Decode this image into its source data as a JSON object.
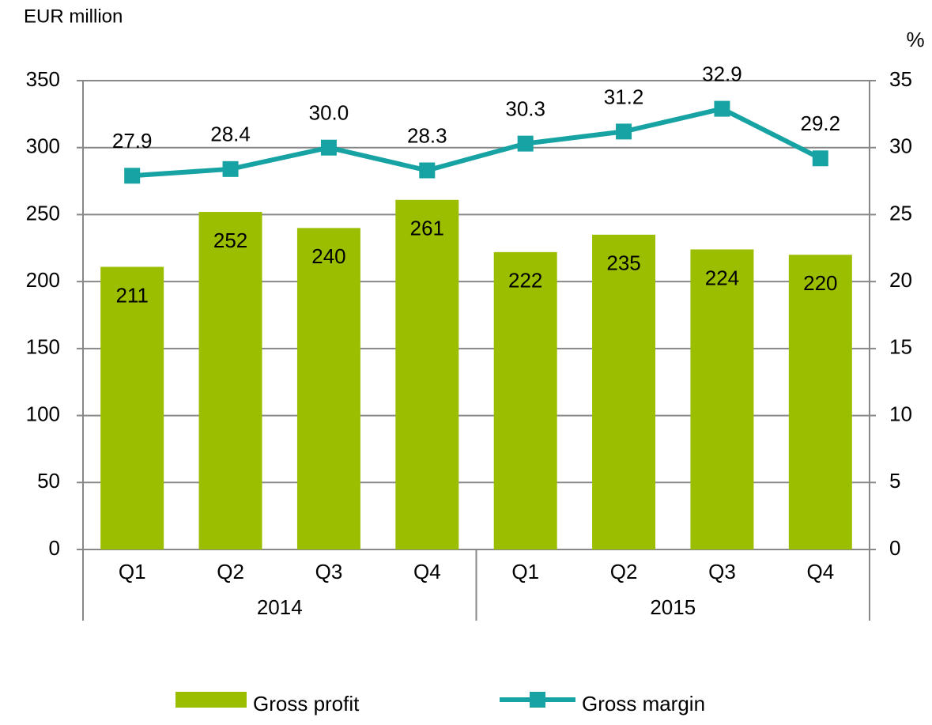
{
  "chart_data": {
    "type": "bar_line",
    "y_axis_label": "EUR million",
    "y2_axis_label": "%",
    "categories": [
      "Q1",
      "Q2",
      "Q3",
      "Q4",
      "Q1",
      "Q2",
      "Q3",
      "Q4"
    ],
    "category_groups": [
      "2014",
      "2015"
    ],
    "series": [
      {
        "name": "Gross profit",
        "type": "bar",
        "color": "#9bbf00",
        "values": [
          211,
          252,
          240,
          261,
          222,
          235,
          224,
          220
        ]
      },
      {
        "name": "Gross margin",
        "type": "line",
        "axis": "y2",
        "color": "#17a3a3",
        "values": [
          27.9,
          28.4,
          30.0,
          28.3,
          30.3,
          31.2,
          32.9,
          29.2
        ],
        "value_labels": [
          "27.9",
          "28.4",
          "30.0",
          "28.3",
          "30.3",
          "31.2",
          "32.9",
          "29.2"
        ]
      }
    ],
    "ylim": [
      0,
      350
    ],
    "yticks": [
      0,
      50,
      100,
      150,
      200,
      250,
      300,
      350
    ],
    "y2lim": [
      0,
      35
    ],
    "y2ticks": [
      0,
      5,
      10,
      15,
      20,
      25,
      30,
      35
    ],
    "grid": true,
    "legend": "bottom"
  }
}
